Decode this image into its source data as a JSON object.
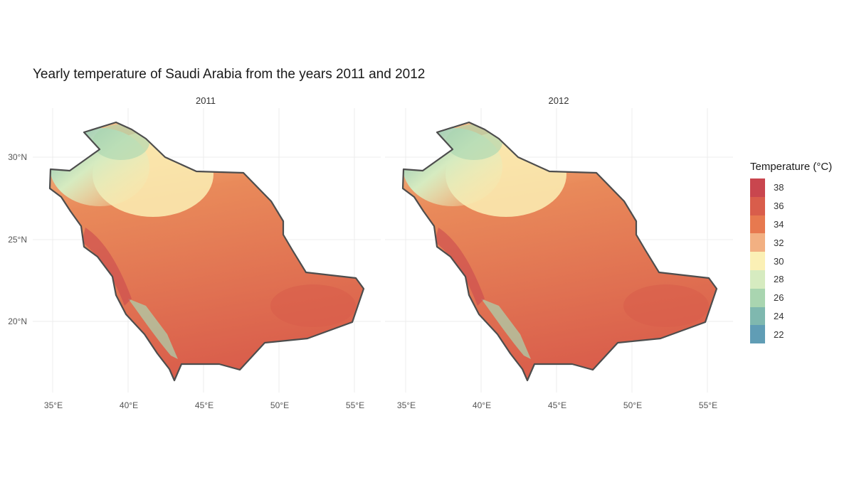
{
  "title": "Yearly temperature of Saudi Arabia from the years 2011 and 2012",
  "panels": [
    {
      "label": "2011"
    },
    {
      "label": "2012"
    }
  ],
  "axes": {
    "x_ticks": [
      "35°E",
      "40°E",
      "45°E",
      "50°E",
      "55°E"
    ],
    "x_values": [
      35,
      40,
      45,
      50,
      55
    ],
    "y_ticks": [
      "30°N",
      "25°N",
      "20°N"
    ],
    "y_values": [
      30,
      25,
      20
    ],
    "x_range": [
      34,
      56
    ],
    "y_range": [
      16,
      32.5
    ]
  },
  "legend": {
    "title": "Temperature (°C)",
    "items": [
      {
        "label": "38",
        "color": "#c9464e"
      },
      {
        "label": "36",
        "color": "#d95d4b"
      },
      {
        "label": "34",
        "color": "#e7794f"
      },
      {
        "label": "32",
        "color": "#f2b082"
      },
      {
        "label": "30",
        "color": "#fbf0b5"
      },
      {
        "label": "28",
        "color": "#d6ebc0"
      },
      {
        "label": "26",
        "color": "#a9d5b0"
      },
      {
        "label": "24",
        "color": "#7fb8af"
      },
      {
        "label": "22",
        "color": "#609db5"
      }
    ]
  },
  "chart_data": {
    "type": "heatmap",
    "title": "Yearly temperature of Saudi Arabia from the years 2011 and 2012",
    "facets": [
      "2011",
      "2012"
    ],
    "xlabel": "",
    "ylabel": "",
    "x_ticks": [
      35,
      40,
      45,
      50,
      55
    ],
    "y_ticks": [
      20,
      25,
      30
    ],
    "value_label": "Temperature (°C)",
    "value_scale": [
      22,
      24,
      26,
      28,
      30,
      32,
      34,
      36,
      38
    ],
    "grid": true,
    "legend_position": "right"
  }
}
